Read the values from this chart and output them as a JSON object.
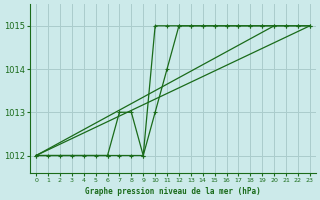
{
  "bg_color": "#cceaea",
  "grid_color": "#aacccc",
  "line_color": "#1a6b1a",
  "title": "Graphe pression niveau de la mer (hPa)",
  "xlim": [
    -0.5,
    23.5
  ],
  "ylim": [
    1011.6,
    1015.5
  ],
  "yticks": [
    1012,
    1013,
    1014,
    1015
  ],
  "xtick_labels": [
    "0",
    "1",
    "2",
    "3",
    "4",
    "5",
    "6",
    "7",
    "8",
    "9",
    "10",
    "11",
    "12",
    "13",
    "14",
    "15",
    "16",
    "17",
    "18",
    "19",
    "20",
    "21",
    "22",
    "23"
  ],
  "xticks": [
    0,
    1,
    2,
    3,
    4,
    5,
    6,
    7,
    8,
    9,
    10,
    11,
    12,
    13,
    14,
    15,
    16,
    17,
    18,
    19,
    20,
    21,
    22,
    23
  ],
  "series": [
    {
      "x": [
        0,
        1,
        2,
        3,
        4,
        5,
        6,
        7,
        8,
        9,
        10,
        11,
        12,
        13,
        14,
        15,
        16,
        17,
        18,
        19,
        20,
        21,
        22,
        23
      ],
      "y": [
        1012,
        1012,
        1012,
        1012,
        1012,
        1012,
        1012,
        1012,
        1012,
        1012,
        1015,
        1015,
        1015,
        1015,
        1015,
        1015,
        1015,
        1015,
        1015,
        1015,
        1015,
        1015,
        1015,
        1015
      ]
    },
    {
      "x": [
        0,
        23
      ],
      "y": [
        1012.0,
        1015.0
      ]
    },
    {
      "x": [
        0,
        20
      ],
      "y": [
        1012.0,
        1015.0
      ]
    },
    {
      "x": [
        0,
        6,
        7,
        8,
        9,
        10,
        11,
        12,
        13,
        14,
        15,
        16,
        17,
        18,
        19,
        20,
        21,
        22,
        23
      ],
      "y": [
        1012,
        1012,
        1013,
        1013,
        1012,
        1013,
        1014,
        1015,
        1015,
        1015,
        1015,
        1015,
        1015,
        1015,
        1015,
        1015,
        1015,
        1015,
        1015
      ]
    }
  ]
}
